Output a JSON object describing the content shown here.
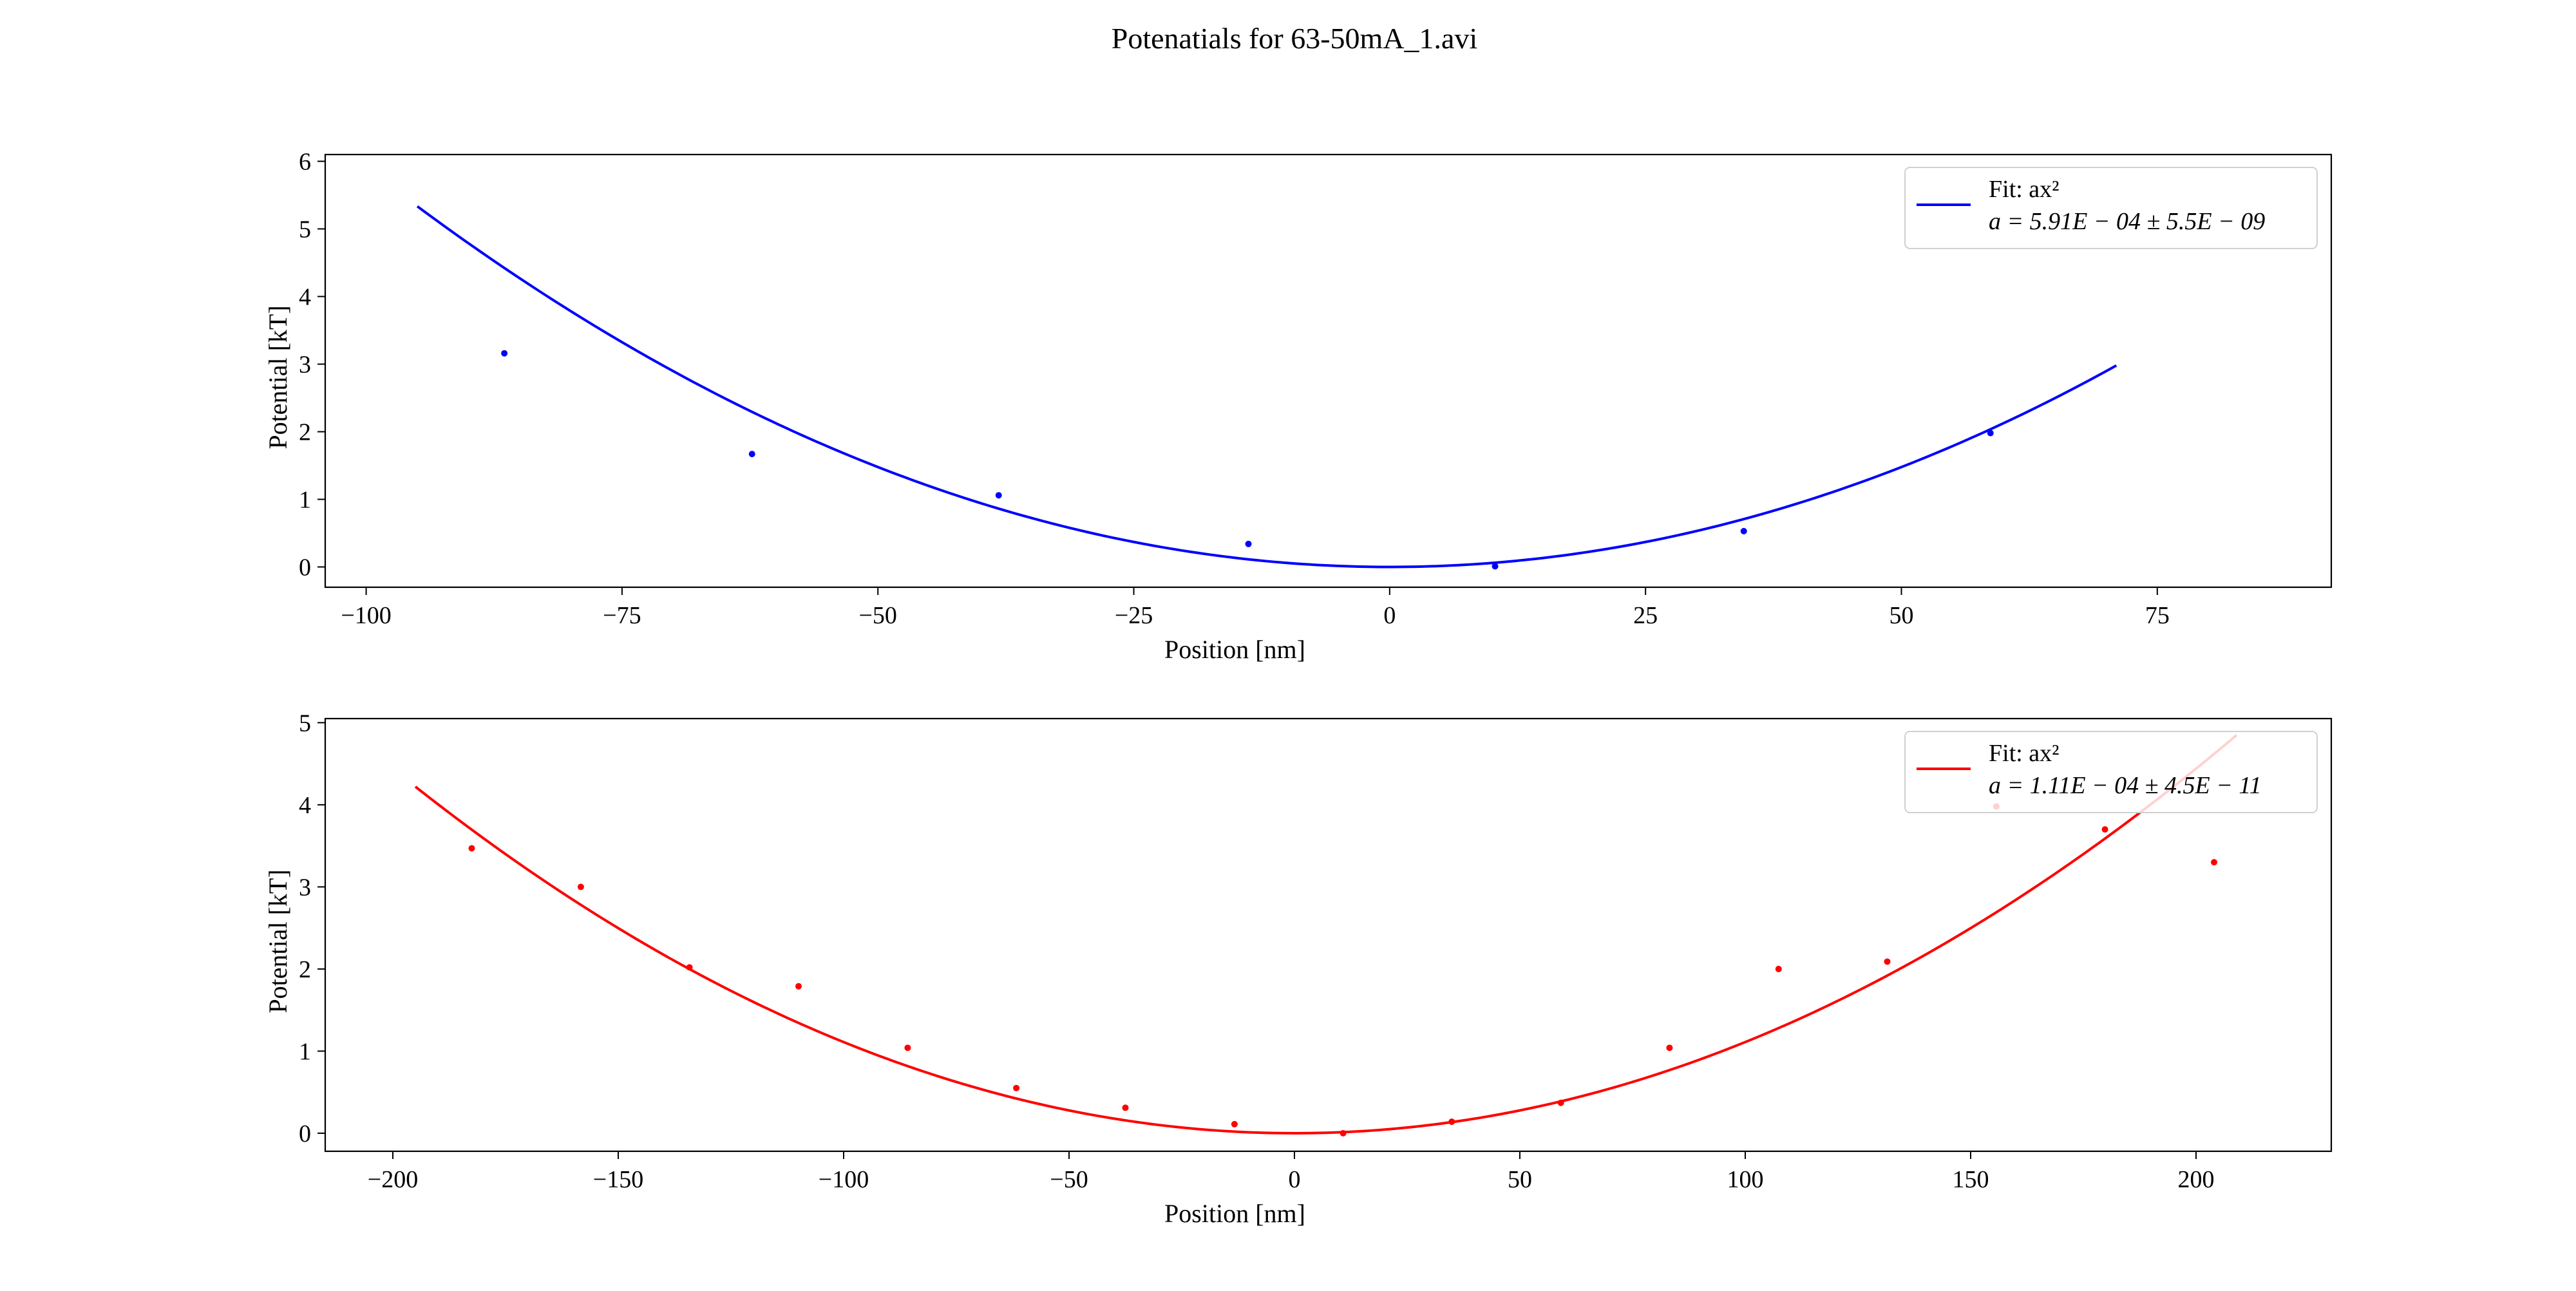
{
  "chart_data": {
    "title": "Potenatials for 63-50mA_1.avi",
    "subplots": [
      {
        "type": "scatter",
        "color": "#0000ff",
        "xlabel": "Position [nm]",
        "ylabel": "Potential [kT]",
        "xlim": [
          -104,
          92
        ],
        "ylim": [
          -0.3,
          6.1
        ],
        "xticks": [
          -100,
          -75,
          -50,
          -25,
          0,
          25,
          50,
          75
        ],
        "xtick_labels": [
          "−100",
          "−75",
          "−50",
          "−25",
          "0",
          "25",
          "50",
          "75"
        ],
        "yticks": [
          0,
          1,
          2,
          3,
          4,
          5,
          6
        ],
        "ytick_labels": [
          "0",
          "1",
          "2",
          "3",
          "4",
          "5",
          "6"
        ],
        "grid": false,
        "legend_position": "top-right",
        "points": {
          "x": [
            -86.5,
            -62.3,
            -38.2,
            -13.8,
            10.3,
            34.6,
            58.7
          ],
          "y": [
            3.16,
            1.67,
            1.06,
            0.34,
            0.01,
            0.53,
            1.98
          ]
        },
        "fit": {
          "a": 0.000591,
          "x_range": [
            -95,
            71
          ],
          "legend_line1": "Fit: ax²",
          "legend_line2": "a = 5.91E − 04 ± 5.5E − 09"
        }
      },
      {
        "type": "scatter",
        "color": "#ff0000",
        "xlabel": "Position [nm]",
        "ylabel": "Potential [kT]",
        "xlim": [
          -215,
          230
        ],
        "ylim": [
          -0.22,
          5.05
        ],
        "xticks": [
          -200,
          -150,
          -100,
          -50,
          0,
          50,
          100,
          150,
          200
        ],
        "xtick_labels": [
          "−200",
          "−150",
          "−100",
          "−50",
          "0",
          "50",
          "100",
          "150",
          "200"
        ],
        "yticks": [
          0,
          1,
          2,
          3,
          4,
          5
        ],
        "ytick_labels": [
          "0",
          "1",
          "2",
          "3",
          "4",
          "5"
        ],
        "grid": false,
        "legend_position": "top-right",
        "points": {
          "x": [
            -182.5,
            -158.3,
            -134.2,
            -110.0,
            -85.8,
            -61.7,
            -37.5,
            -13.3,
            10.8,
            34.9,
            59.1,
            83.2,
            107.4,
            131.5,
            155.7,
            179.8,
            204.0
          ],
          "y": [
            3.47,
            3.0,
            2.02,
            1.79,
            1.04,
            0.55,
            0.31,
            0.11,
            0.0,
            0.14,
            0.37,
            1.04,
            2.0,
            2.09,
            3.98,
            3.7,
            3.3
          ]
        },
        "fit": {
          "a": 0.000111,
          "x_range": [
            -195,
            209
          ],
          "legend_line1": "Fit: ax²",
          "legend_line2": "a = 1.11E − 04 ± 4.5E − 11"
        }
      }
    ]
  }
}
